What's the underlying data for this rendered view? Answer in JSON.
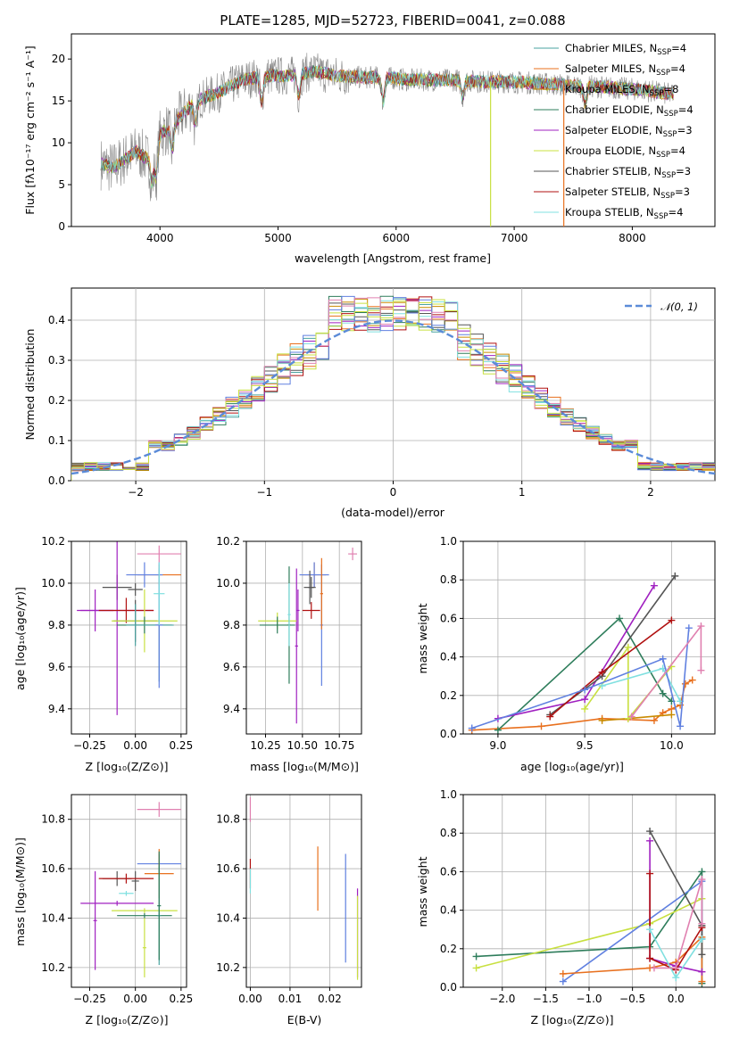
{
  "title": "PLATE=1285, MJD=52723, FIBERID=0041, z=0.088",
  "colors": [
    "#4aa3a0",
    "#e8701e",
    "#c98a00",
    "#2e7d5b",
    "#a020c0",
    "#c8e040",
    "#555555",
    "#b01010",
    "#80e0e0",
    "#6080e0",
    "#e080b0",
    "#888888"
  ],
  "chart_data": [
    {
      "id": "spectrum",
      "type": "line",
      "xlabel": "wavelength [Angstrom, rest frame]",
      "ylabel": "Flux [f$_\\lambda$10$^{-17}$ erg cm$^{-2}$ s$^{-1}$ A$^{-1}$]",
      "ylabel_display": "Flux [fλ10⁻¹⁷ erg cm⁻² s⁻¹ A⁻¹]",
      "xlim": [
        3250,
        8700
      ],
      "ylim": [
        0,
        23
      ],
      "xticks": [
        4000,
        5000,
        6000,
        7000,
        8000
      ],
      "yticks": [
        0,
        5,
        10,
        15,
        20
      ],
      "grid": false,
      "legend": "top-right",
      "series": [
        {
          "name": "Chabrier MILES, N$_{SSP}$=4",
          "label": "Chabrier MILES, N",
          "sub": "SSP",
          "suffix": "=4",
          "color": "#4aa3a0"
        },
        {
          "name": "Salpeter MILES, N$_{SSP}$=4",
          "label": "Salpeter MILES, N",
          "sub": "SSP",
          "suffix": "=4",
          "color": "#e8701e"
        },
        {
          "name": "Kroupa MILES, N$_{SSP}$=8",
          "label": "Kroupa MILES, N",
          "sub": "SSP",
          "suffix": "=8",
          "color": "#c98a00"
        },
        {
          "name": "Chabrier ELODIE, N$_{SSP}$=4",
          "label": "Chabrier ELODIE, N",
          "sub": "SSP",
          "suffix": "=4",
          "color": "#2e7d5b"
        },
        {
          "name": "Salpeter ELODIE, N$_{SSP}$=3",
          "label": "Salpeter ELODIE, N",
          "sub": "SSP",
          "suffix": "=3",
          "color": "#a020c0"
        },
        {
          "name": "Kroupa ELODIE, N$_{SSP}$=4",
          "label": "Kroupa ELODIE, N",
          "sub": "SSP",
          "suffix": "=4",
          "color": "#c8e040"
        },
        {
          "name": "Chabrier STELIB, N$_{SSP}$=3",
          "label": "Chabrier STELIB, N",
          "sub": "SSP",
          "suffix": "=3",
          "color": "#555555"
        },
        {
          "name": "Salpeter STELIB, N$_{SSP}$=3",
          "label": "Salpeter STELIB, N",
          "sub": "SSP",
          "suffix": "=3",
          "color": "#b01010"
        },
        {
          "name": "Kroupa STELIB, N$_{SSP}$=4",
          "label": "Kroupa STELIB, N",
          "sub": "SSP",
          "suffix": "=4",
          "color": "#80e0e0"
        }
      ],
      "trend": [
        [
          3500,
          7.5
        ],
        [
          3600,
          7
        ],
        [
          3700,
          8
        ],
        [
          3800,
          9
        ],
        [
          3900,
          8
        ],
        [
          4000,
          11
        ],
        [
          4100,
          12
        ],
        [
          4300,
          15
        ],
        [
          4500,
          16
        ],
        [
          4700,
          17.5
        ],
        [
          4900,
          18
        ],
        [
          5100,
          18
        ],
        [
          5300,
          18.5
        ],
        [
          5500,
          18
        ],
        [
          5700,
          17.8
        ],
        [
          5900,
          17.8
        ],
        [
          6100,
          17.5
        ],
        [
          6300,
          17.5
        ],
        [
          6500,
          17.5
        ],
        [
          6700,
          17.3
        ],
        [
          6900,
          17.3
        ],
        [
          7100,
          17.2
        ],
        [
          7300,
          17
        ],
        [
          7500,
          16.8
        ],
        [
          7700,
          16.7
        ],
        [
          7900,
          16.5
        ],
        [
          8100,
          16.3
        ],
        [
          8300,
          15.8
        ]
      ],
      "absorptions": [
        [
          3933,
          4
        ],
        [
          3968,
          4
        ],
        [
          4102,
          3
        ],
        [
          4300,
          3
        ],
        [
          4861,
          3
        ],
        [
          5175,
          2.5
        ],
        [
          5890,
          3
        ],
        [
          6563,
          2
        ],
        [
          7600,
          2
        ]
      ],
      "drops": [
        {
          "x": 6800,
          "color": "#c8e040"
        },
        {
          "x": 7420,
          "color": "#e8701e"
        }
      ]
    },
    {
      "id": "residuals",
      "type": "step",
      "xlabel": "(data-model)/error",
      "ylabel": "Normed distribution",
      "xlim": [
        -2.5,
        2.5
      ],
      "ylim": [
        0,
        0.48
      ],
      "xticks": [
        -2,
        -1,
        0,
        1,
        2
      ],
      "yticks": [
        0.0,
        0.1,
        0.2,
        0.3,
        0.4
      ],
      "grid": true,
      "legend": "top-right",
      "reference": {
        "name": "$\\mathcal{N}(0,1)$",
        "label": "𝒩(0, 1)",
        "color": "#5b8bd8"
      },
      "bin_width": 0.1,
      "bins_start": -2.5
    },
    {
      "id": "age_vs_Z",
      "type": "errorbar",
      "xlabel": "Z [log$_{10}$(Z/Z$_\\odot$)]",
      "xlabel_display": "Z [log₁₀(Z/Z⊙)]",
      "ylabel": "age  [log$_{10}$(age/yr)]",
      "ylabel_display": "age  [log₁₀(age/yr)]",
      "xlim": [
        -0.35,
        0.28
      ],
      "ylim": [
        9.28,
        10.2
      ],
      "xticks": [
        -0.25,
        0.0,
        0.25
      ],
      "yticks": [
        9.4,
        9.6,
        9.8,
        10.0,
        10.2
      ],
      "grid": true,
      "points": [
        {
          "x": 0.13,
          "xerr": 0.12,
          "y": 10.14,
          "yerr": 0.04,
          "color": "#e080b0"
        },
        {
          "x": 0.13,
          "xerr": 0.12,
          "y": 10.04,
          "yerr": 0.05,
          "color": "#e8701e"
        },
        {
          "x": 0.05,
          "xerr": 0.1,
          "y": 10.04,
          "yerr": 0.06,
          "color": "#6080e0"
        },
        {
          "x": -0.1,
          "xerr": 0.08,
          "y": 9.98,
          "yerr": 0.06,
          "color": "#555555"
        },
        {
          "x": 0.0,
          "xerr": 0.04,
          "y": 9.97,
          "yerr": 0.03,
          "color": "#555555"
        },
        {
          "x": -0.22,
          "xerr": 0.1,
          "y": 9.87,
          "yerr": 0.1,
          "color": "#a020c0"
        },
        {
          "x": -0.1,
          "xerr": 0.2,
          "y": 9.87,
          "yerr": 0.5,
          "color": "#a020c0"
        },
        {
          "x": -0.05,
          "xerr": 0.15,
          "y": 9.87,
          "yerr": 0.06,
          "color": "#b01010"
        },
        {
          "x": 0.0,
          "xerr": 0.12,
          "y": 9.82,
          "yerr": 0.1,
          "color": "#555555"
        },
        {
          "x": 0.05,
          "xerr": 0.18,
          "y": 9.82,
          "yerr": 0.15,
          "color": "#c8e040"
        },
        {
          "x": 0.05,
          "xerr": 0.15,
          "y": 9.8,
          "yerr": 0.04,
          "color": "#2e7d5b"
        },
        {
          "x": 0.0,
          "xerr": 0.05,
          "y": 9.8,
          "yerr": 0.1,
          "color": "#4aa3a0"
        },
        {
          "x": 0.13,
          "xerr": 0.08,
          "y": 9.8,
          "yerr": 0.27,
          "color": "#4aa3a0"
        },
        {
          "x": 0.13,
          "xerr": 0.02,
          "y": 9.8,
          "yerr": 0.3,
          "color": "#6080e0"
        },
        {
          "x": 0.13,
          "xerr": 0.03,
          "y": 9.95,
          "yerr": 0.15,
          "color": "#80e0e0"
        }
      ]
    },
    {
      "id": "age_vs_mass",
      "type": "errorbar",
      "xlabel": "mass [log$_{10}$(M/M$_\\odot$)]",
      "xlabel_display": "mass [log₁₀(M/M⊙)]",
      "xlim": [
        10.12,
        10.9
      ],
      "ylim": [
        9.28,
        10.2
      ],
      "xticks": [
        10.25,
        10.5,
        10.75
      ],
      "yticks": [
        9.4,
        9.6,
        9.8,
        10.0,
        10.2
      ],
      "grid": true,
      "points": [
        {
          "x": 10.84,
          "xerr": 0.03,
          "y": 10.14,
          "yerr": 0.03,
          "color": "#e080b0"
        },
        {
          "x": 10.58,
          "xerr": 0.08,
          "y": 10.04,
          "yerr": 0.06,
          "color": "#e8701e"
        },
        {
          "x": 10.58,
          "xerr": 0.1,
          "y": 10.04,
          "yerr": 0.06,
          "color": "#6080e0"
        },
        {
          "x": 10.56,
          "xerr": 0.02,
          "y": 9.98,
          "yerr": 0.05,
          "color": "#555555"
        },
        {
          "x": 10.55,
          "xerr": 0.04,
          "y": 9.98,
          "yerr": 0.08,
          "color": "#555555"
        },
        {
          "x": 10.47,
          "xerr": 0.01,
          "y": 9.87,
          "yerr": 0.1,
          "color": "#a020c0"
        },
        {
          "x": 10.46,
          "xerr": 0.01,
          "y": 9.7,
          "yerr": 0.37,
          "color": "#a020c0"
        },
        {
          "x": 10.56,
          "xerr": 0.06,
          "y": 9.87,
          "yerr": 0.04,
          "color": "#b01010"
        },
        {
          "x": 10.33,
          "xerr": 0.13,
          "y": 9.82,
          "yerr": 0.04,
          "color": "#c8e040"
        },
        {
          "x": 10.33,
          "xerr": 0.12,
          "y": 9.8,
          "yerr": 0.04,
          "color": "#2e7d5b"
        },
        {
          "x": 10.41,
          "xerr": 0.01,
          "y": 9.8,
          "yerr": 0.28,
          "color": "#2e7d5b"
        },
        {
          "x": 10.63,
          "xerr": 0.01,
          "y": 9.8,
          "yerr": 0.29,
          "color": "#6080e0"
        },
        {
          "x": 10.63,
          "xerr": 0.01,
          "y": 9.95,
          "yerr": 0.17,
          "color": "#e8701e"
        },
        {
          "x": 10.41,
          "xerr": 0.01,
          "y": 9.85,
          "yerr": 0.15,
          "color": "#80e0e0"
        }
      ]
    },
    {
      "id": "massweight_vs_age",
      "type": "line",
      "xlabel": "age  [log$_{10}$(age/yr)]",
      "xlabel_display": "age  [log₁₀(age/yr)]",
      "ylabel": "mass weight",
      "xlim": [
        8.8,
        10.25
      ],
      "ylim": [
        0,
        1
      ],
      "xticks": [
        9.0,
        9.5,
        10.0
      ],
      "yticks": [
        0.0,
        0.2,
        0.4,
        0.6,
        0.8,
        1.0
      ],
      "grid": true,
      "series": [
        {
          "color": "#e8701e",
          "x": [
            8.85,
            9.25,
            9.6,
            9.9,
            9.95,
            10.0,
            10.05,
            10.08,
            10.12
          ],
          "y": [
            0.02,
            0.04,
            0.08,
            0.07,
            0.11,
            0.13,
            0.15,
            0.26,
            0.28
          ]
        },
        {
          "color": "#c98a00",
          "x": [
            9.6,
            9.75,
            10.0
          ],
          "y": [
            0.07,
            0.08,
            0.1
          ]
        },
        {
          "color": "#2e7d5b",
          "x": [
            9.0,
            9.7,
            9.95,
            10.0
          ],
          "y": [
            0.02,
            0.6,
            0.21,
            0.17
          ]
        },
        {
          "color": "#a020c0",
          "x": [
            9.0,
            9.5,
            9.9
          ],
          "y": [
            0.08,
            0.18,
            0.77
          ]
        },
        {
          "color": "#c8e040",
          "x": [
            9.5,
            9.75,
            9.75,
            10.0
          ],
          "y": [
            0.13,
            0.45,
            0.08,
            0.35
          ]
        },
        {
          "color": "#555555",
          "x": [
            9.3,
            9.6,
            10.02
          ],
          "y": [
            0.1,
            0.3,
            0.82
          ]
        },
        {
          "color": "#b01010",
          "x": [
            9.3,
            9.6,
            10.0
          ],
          "y": [
            0.09,
            0.32,
            0.59
          ]
        },
        {
          "color": "#80e0e0",
          "x": [
            9.6,
            9.95,
            10.05
          ],
          "y": [
            0.25,
            0.34,
            0.17
          ]
        },
        {
          "color": "#6080e0",
          "x": [
            8.85,
            9.5,
            9.95,
            10.05,
            10.1
          ],
          "y": [
            0.03,
            0.23,
            0.39,
            0.04,
            0.55
          ]
        },
        {
          "color": "#e080b0",
          "x": [
            9.77,
            10.17,
            10.17
          ],
          "y": [
            0.09,
            0.56,
            0.33
          ]
        }
      ]
    },
    {
      "id": "mass_vs_Z",
      "type": "errorbar",
      "xlabel": "Z [log$_{10}$(Z/Z$_\\odot$)]",
      "xlabel_display": "Z [log₁₀(Z/Z⊙)]",
      "ylabel": "mass [log$_{10}$(M/M$_\\odot$)]",
      "ylabel_display": "mass [log₁₀(M/M⊙)]",
      "xlim": [
        -0.35,
        0.28
      ],
      "ylim": [
        10.12,
        10.9
      ],
      "xticks": [
        -0.25,
        0.0,
        0.25
      ],
      "yticks": [
        10.2,
        10.4,
        10.6,
        10.8
      ],
      "grid": true,
      "points": [
        {
          "x": 0.13,
          "xerr": 0.12,
          "y": 10.84,
          "yerr": 0.03,
          "color": "#e080b0"
        },
        {
          "x": 0.13,
          "xerr": 0.12,
          "y": 10.62,
          "yerr": 0.04,
          "color": "#6080e0"
        },
        {
          "x": 0.13,
          "xerr": 0.08,
          "y": 10.58,
          "yerr": 0.1,
          "color": "#e8701e"
        },
        {
          "x": -0.1,
          "xerr": 0.08,
          "y": 10.56,
          "yerr": 0.03,
          "color": "#555555"
        },
        {
          "x": 0.0,
          "xerr": 0.02,
          "y": 10.55,
          "yerr": 0.04,
          "color": "#555555"
        },
        {
          "x": -0.05,
          "xerr": 0.15,
          "y": 10.56,
          "yerr": 0.02,
          "color": "#b01010"
        },
        {
          "x": -0.05,
          "xerr": 0.04,
          "y": 10.5,
          "yerr": 0.01,
          "color": "#80e0e0"
        },
        {
          "x": -0.1,
          "xerr": 0.2,
          "y": 10.46,
          "yerr": 0.01,
          "color": "#a020c0"
        },
        {
          "x": -0.22,
          "xerr": 0.01,
          "y": 10.39,
          "yerr": 0.2,
          "color": "#a020c0"
        },
        {
          "x": 0.05,
          "xerr": 0.18,
          "y": 10.43,
          "yerr": 0.01,
          "color": "#c8e040"
        },
        {
          "x": 0.05,
          "xerr": 0.15,
          "y": 10.41,
          "yerr": 0.01,
          "color": "#2e7d5b"
        },
        {
          "x": 0.13,
          "xerr": 0.01,
          "y": 10.41,
          "yerr": 0.2,
          "color": "#4aa3a0"
        },
        {
          "x": 0.13,
          "xerr": 0.01,
          "y": 10.45,
          "yerr": 0.22,
          "color": "#2e7d5b"
        },
        {
          "x": 0.05,
          "xerr": 0.01,
          "y": 10.28,
          "yerr": 0.12,
          "color": "#c8e040"
        }
      ]
    },
    {
      "id": "mass_vs_EBV",
      "type": "errorbar",
      "xlabel": "E(B-V)",
      "xlim": [
        -0.001,
        0.028
      ],
      "ylim": [
        10.12,
        10.9
      ],
      "xticks": [
        0.0,
        0.01,
        0.02
      ],
      "yticks": [
        10.2,
        10.4,
        10.6,
        10.8
      ],
      "grid": true,
      "points": [
        {
          "x": 0.0,
          "xerr": 0,
          "y": 10.84,
          "yerr": 0.05,
          "color": "#e080b0"
        },
        {
          "x": 0.0,
          "xerr": 0,
          "y": 10.58,
          "yerr": 0.06,
          "color": "#b01010"
        },
        {
          "x": 0.0,
          "xerr": 0,
          "y": 10.55,
          "yerr": 0.05,
          "color": "#80e0e0"
        },
        {
          "x": 0.017,
          "xerr": 0,
          "y": 10.56,
          "yerr": 0.13,
          "color": "#e8701e"
        },
        {
          "x": 0.024,
          "xerr": 0,
          "y": 10.44,
          "yerr": 0.22,
          "color": "#6080e0"
        },
        {
          "x": 0.027,
          "xerr": 0,
          "y": 10.34,
          "yerr": 0.18,
          "color": "#a020c0"
        },
        {
          "x": 0.027,
          "xerr": 0,
          "y": 10.32,
          "yerr": 0.17,
          "color": "#c8e040"
        }
      ]
    },
    {
      "id": "massweight_vs_Z",
      "type": "line",
      "xlabel": "Z [log$_{10}$(Z/Z$_\\odot$)]",
      "xlabel_display": "Z [log₁₀(Z/Z⊙)]",
      "ylabel": "mass weight",
      "xlim": [
        -2.45,
        0.45
      ],
      "ylim": [
        0,
        1
      ],
      "xticks": [
        -2.0,
        -1.5,
        -1.0,
        -0.5,
        0.0
      ],
      "yticks": [
        0.0,
        0.2,
        0.4,
        0.6,
        0.8,
        1.0
      ],
      "grid": true,
      "series": [
        {
          "color": "#2e7d5b",
          "x": [
            -2.3,
            -0.3,
            0.3,
            0.3
          ],
          "y": [
            0.16,
            0.21,
            0.6,
            0.02
          ]
        },
        {
          "color": "#c8e040",
          "x": [
            -2.3,
            -0.3,
            0.3
          ],
          "y": [
            0.1,
            0.33,
            0.46
          ]
        },
        {
          "color": "#6080e0",
          "x": [
            -1.3,
            0.3,
            0.3
          ],
          "y": [
            0.03,
            0.55,
            0.25
          ]
        },
        {
          "color": "#e8701e",
          "x": [
            -1.3,
            -0.3,
            0.0,
            0.3,
            0.3
          ],
          "y": [
            0.07,
            0.1,
            0.13,
            0.26,
            0.03
          ]
        },
        {
          "color": "#a020c0",
          "x": [
            -0.3,
            -0.3,
            0.0,
            0.3
          ],
          "y": [
            0.76,
            0.15,
            0.11,
            0.08
          ]
        },
        {
          "color": "#555555",
          "x": [
            -0.3,
            0.3,
            0.3
          ],
          "y": [
            0.81,
            0.32,
            0.17
          ]
        },
        {
          "color": "#b01010",
          "x": [
            -0.3,
            -0.3,
            0.0,
            0.3
          ],
          "y": [
            0.59,
            0.15,
            0.09,
            0.31
          ]
        },
        {
          "color": "#80e0e0",
          "x": [
            -0.3,
            0.0,
            0.3
          ],
          "y": [
            0.3,
            0.05,
            0.25
          ]
        },
        {
          "color": "#e080b0",
          "x": [
            -0.25,
            0.0,
            0.3,
            0.3
          ],
          "y": [
            0.1,
            0.1,
            0.56,
            0.33
          ]
        }
      ]
    }
  ]
}
